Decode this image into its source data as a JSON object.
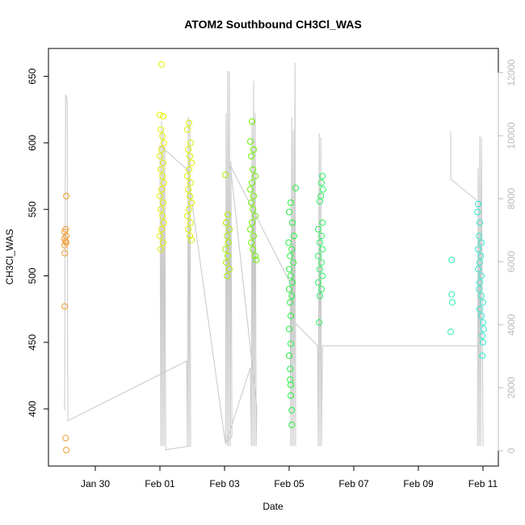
{
  "chart_data": {
    "type": "scatter",
    "title": "ATOM2 Southbound CH3Cl_WAS",
    "x_label": "Date",
    "y_label": "CH3Cl_WAS",
    "xlim": [
      28.55,
      42.475
    ],
    "xticks": [
      {
        "value": 30,
        "label": "Jan 30"
      },
      {
        "value": 32,
        "label": "Feb 01"
      },
      {
        "value": 34,
        "label": "Feb 03"
      },
      {
        "value": 36,
        "label": "Feb 05"
      },
      {
        "value": 38,
        "label": "Feb 07"
      },
      {
        "value": 40,
        "label": "Feb 09"
      },
      {
        "value": 42,
        "label": "Feb 11"
      }
    ],
    "ylim": [
      357,
      671
    ],
    "yticks": [
      400,
      450,
      500,
      550,
      600,
      650
    ],
    "y2lim": [
      -487,
      12769
    ],
    "y2ticks": [
      0,
      2000,
      4000,
      6000,
      8000,
      10000,
      12000
    ],
    "series": [
      {
        "type": "line",
        "axis": "y2",
        "color": "#c8c8c8",
        "x": [
          29.05,
          29.08,
          29.13,
          29.15,
          32.83,
          32.85,
          32.88,
          32.9,
          32.93,
          32.95,
          32.18,
          32.15,
          32.13,
          32.1,
          32.08,
          32.05,
          32.03,
          32.0,
          32.85,
          34.03,
          34.05,
          34.08,
          34.1,
          34.13,
          34.15,
          34.18,
          34.2,
          34.23,
          34.05,
          34.8,
          34.83,
          34.85,
          34.88,
          34.9,
          34.93,
          34.95,
          34.98,
          35.0,
          34.18,
          36.03,
          36.05,
          36.08,
          36.1,
          36.13,
          36.15,
          36.18,
          36.2,
          36.2,
          36.88,
          36.9,
          36.93,
          36.95,
          36.98,
          37.0,
          37.03,
          41.83,
          null,
          41.0,
          41.0,
          41.8,
          null,
          41.83,
          41.85,
          41.88,
          41.9,
          41.93,
          41.95,
          42.0
        ],
        "values": [
          1280,
          11310,
          11100,
          950,
          2850,
          150,
          10590,
          150,
          10510,
          150,
          30,
          9690,
          150,
          10200,
          150,
          10460,
          150,
          9690,
          8920,
          210,
          10720,
          150,
          12050,
          150,
          12050,
          150,
          9180,
          460,
          260,
          2640,
          150,
          10460,
          150,
          11740,
          150,
          10720,
          150,
          1380,
          9050,
          5330,
          150,
          10590,
          150,
          10200,
          150,
          12310,
          150,
          4050,
          3330,
          150,
          10080,
          150,
          9950,
          150,
          3330,
          3330,
          null,
          10150,
          8620,
          7950,
          null,
          150,
          8970,
          150,
          10000,
          150,
          9950,
          150
        ]
      },
      {
        "type": "scatter",
        "color": "#f29b30",
        "x": [
          29.1,
          29.08,
          29.05,
          29.1,
          29.05,
          29.08,
          29.1,
          29.05,
          29.05,
          29.05,
          29.08,
          29.1
        ],
        "values": [
          560,
          535,
          533,
          530,
          528,
          526,
          525,
          523,
          517,
          477,
          378,
          369
        ]
      },
      {
        "type": "scatter",
        "color": "#e6f000",
        "x": [
          32.05,
          32.0,
          32.1,
          32.03,
          32.08,
          32.12,
          32.05,
          32.0,
          32.1,
          32.03,
          32.08,
          32.12,
          32.05,
          32.0,
          32.1,
          32.03,
          32.08,
          32.12,
          32.05,
          32.0,
          32.1,
          32.03
        ],
        "values": [
          659,
          621,
          620,
          610,
          605,
          600,
          595,
          590,
          585,
          580,
          575,
          570,
          565,
          560,
          555,
          550,
          545,
          540,
          535,
          530,
          525,
          520
        ]
      },
      {
        "type": "scatter",
        "color": "#dcf000",
        "x": [
          32.9,
          32.85,
          32.95,
          32.88,
          32.93,
          32.98,
          32.9,
          32.85,
          32.95,
          32.88,
          32.93,
          32.98,
          32.9,
          32.85,
          32.95,
          32.88,
          32.93,
          32.98
        ],
        "values": [
          615,
          610,
          600,
          595,
          590,
          585,
          580,
          575,
          570,
          565,
          560,
          555,
          550,
          545,
          540,
          535,
          530,
          527
        ]
      },
      {
        "type": "scatter",
        "color": "#a6f000",
        "x": [
          34.03,
          34.1,
          34.05,
          34.15,
          34.08,
          34.12,
          34.03,
          34.1,
          34.05,
          34.15,
          34.08
        ],
        "values": [
          576,
          546,
          540,
          535,
          530,
          525,
          520,
          515,
          510,
          505,
          500
        ]
      },
      {
        "type": "scatter",
        "color": "#6af000",
        "x": [
          34.85,
          34.8,
          34.9,
          34.83,
          34.88,
          34.95,
          34.85,
          34.8,
          34.9,
          34.83,
          34.88,
          34.95,
          34.85,
          34.8,
          34.9,
          34.83,
          34.88,
          34.95,
          34.98
        ],
        "values": [
          616,
          601,
          595,
          590,
          580,
          575,
          570,
          565,
          560,
          555,
          550,
          545,
          540,
          535,
          530,
          525,
          520,
          515,
          512
        ]
      },
      {
        "type": "scatter",
        "color": "#28f040",
        "x": [
          36.2,
          36.05,
          36.0,
          36.1,
          36.15,
          35.98,
          36.08,
          36.03,
          36.13,
          36.0,
          36.05,
          36.1,
          36.0,
          36.08,
          36.03,
          36.05,
          36.0,
          36.05,
          36.0,
          36.03,
          36.03,
          36.05,
          36.05,
          36.08,
          36.08
        ],
        "values": [
          566,
          555,
          548,
          540,
          530,
          525,
          520,
          515,
          510,
          505,
          500,
          495,
          490,
          485,
          480,
          470,
          460,
          449,
          440,
          430,
          422,
          418,
          410,
          399,
          388
        ]
      },
      {
        "type": "scatter",
        "color": "#28f060",
        "x": [
          37.03,
          37.0,
          37.05,
          36.98,
          36.95,
          37.03,
          36.9,
          37.0,
          36.95,
          37.03,
          36.9,
          37.0,
          36.95,
          37.03,
          36.9,
          37.0,
          36.95,
          36.93
        ],
        "values": [
          575,
          570,
          565,
          560,
          556,
          540,
          535,
          530,
          525,
          520,
          515,
          510,
          505,
          500,
          495,
          490,
          485,
          465
        ]
      },
      {
        "type": "scatter",
        "color": "#30f0b0",
        "x": [
          41.03,
          41.03,
          41.05,
          41.0
        ],
        "values": [
          512,
          486,
          480,
          458
        ]
      },
      {
        "type": "scatter",
        "color": "#30e8d0",
        "x": [
          41.85,
          41.83,
          41.9,
          41.88,
          41.95,
          41.85,
          41.93,
          41.9,
          41.85,
          41.95,
          41.9,
          41.88,
          41.95,
          42.0,
          41.9,
          41.95,
          42.0,
          42.02,
          41.98,
          42.0,
          41.98
        ],
        "values": [
          554,
          548,
          540,
          530,
          525,
          520,
          515,
          510,
          505,
          500,
          495,
          490,
          485,
          480,
          475,
          470,
          465,
          460,
          455,
          450,
          440
        ]
      }
    ]
  }
}
